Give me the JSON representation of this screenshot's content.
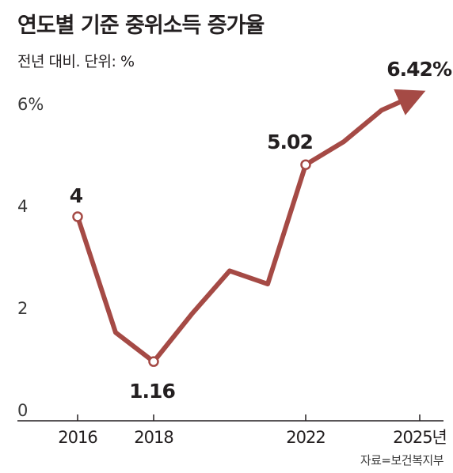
{
  "header": {
    "title": "연도별 기준 중위소득 증가율",
    "subtitle": "전년 대비. 단위: %"
  },
  "source": "자료=보건복지부",
  "colors": {
    "line": "#a54a45",
    "axis": "#231f20",
    "text": "#231f20"
  },
  "chart_data": {
    "type": "line",
    "title": "연도별 기준 중위소득 증가율",
    "subtitle": "전년 대비. 단위: %",
    "x": [
      2016,
      2017,
      2018,
      2019,
      2020,
      2021,
      2022,
      2023,
      2024,
      2025
    ],
    "series": [
      {
        "values": [
          4.0,
          1.73,
          1.16,
          2.09,
          2.94,
          2.68,
          5.02,
          5.47,
          6.09,
          6.42
        ]
      }
    ],
    "y_ticks": [
      "0",
      "2",
      "4",
      "6%"
    ],
    "y_tick_values": [
      0,
      2,
      4,
      6
    ],
    "x_ticks": [
      "2016",
      "2018",
      "2022",
      "2025년"
    ],
    "x_tick_values": [
      2016,
      2018,
      2022,
      2025
    ],
    "data_labels": [
      {
        "x": 2016,
        "text": "4"
      },
      {
        "x": 2018,
        "text": "1.16"
      },
      {
        "x": 2022,
        "text": "5.02"
      },
      {
        "x": 2025,
        "text": "6.42%"
      }
    ],
    "ylim": [
      0,
      6
    ],
    "xlim": [
      2016,
      2025
    ],
    "grid": false,
    "legend": "none",
    "end_arrow": true
  }
}
